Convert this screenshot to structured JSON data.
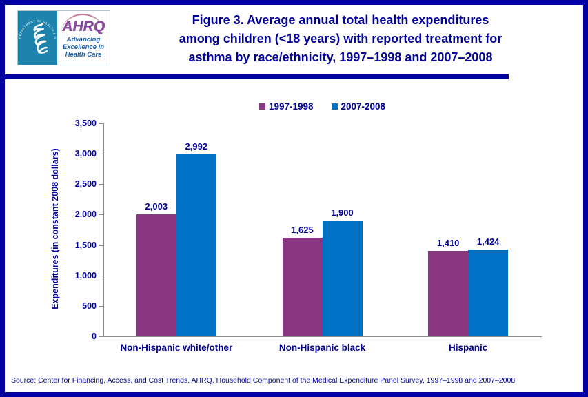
{
  "page": {
    "border_color": "#0101A0",
    "background": "#FFFFFF"
  },
  "logo": {
    "org_abbrev": "AHRQ",
    "tagline_lines": [
      "Advancing",
      "Excellence in",
      "Health Care"
    ],
    "seal_text": "DEPARTMENT OF HEALTH & HUMAN SERVICES • USA",
    "seal_bg_color": "#1E84AD",
    "ahrq_color": "#8A4B9E",
    "tagline_color": "#1B5EAC"
  },
  "header": {
    "title_lines": [
      "Figure 3. Average annual total health expenditures",
      "among children (<18 years) with reported treatment for",
      "asthma by race/ethnicity, 1997–1998 and 2007–2008"
    ],
    "title_color": "#000099"
  },
  "chart_data": {
    "type": "bar",
    "title": "Figure 3. Average annual total health expenditures among children (<18 years) with reported treatment for asthma by race/ethnicity, 1997–1998 and 2007–2008",
    "categories": [
      "Non-Hispanic white/other",
      "Non-Hispanic black",
      "Hispanic"
    ],
    "series": [
      {
        "name": "1997-1998",
        "color": "#8A3781",
        "values": [
          2003,
          1625,
          1410
        ]
      },
      {
        "name": "2007-2008",
        "color": "#0071C5",
        "values": [
          2992,
          1900,
          1424
        ]
      }
    ],
    "xlabel": "",
    "ylabel": "Expenditures  (in constant 2008  dollars)",
    "ylim": [
      0,
      3500
    ],
    "ytick_step": 500,
    "ytick_labels": [
      "0",
      "500",
      "1,000",
      "1,500",
      "2,000",
      "2,500",
      "3,000",
      "3,500"
    ],
    "grid": false,
    "legend_position": "top-center",
    "value_labels_shown": true,
    "axis_color": "#8C8C8C",
    "text_color": "#000099"
  },
  "footer": {
    "source": "Source: Center for Financing, Access, and Cost Trends, AHRQ, Household Component of the Medical Expenditure Panel Survey, 1997–1998 and 2007–2008"
  }
}
